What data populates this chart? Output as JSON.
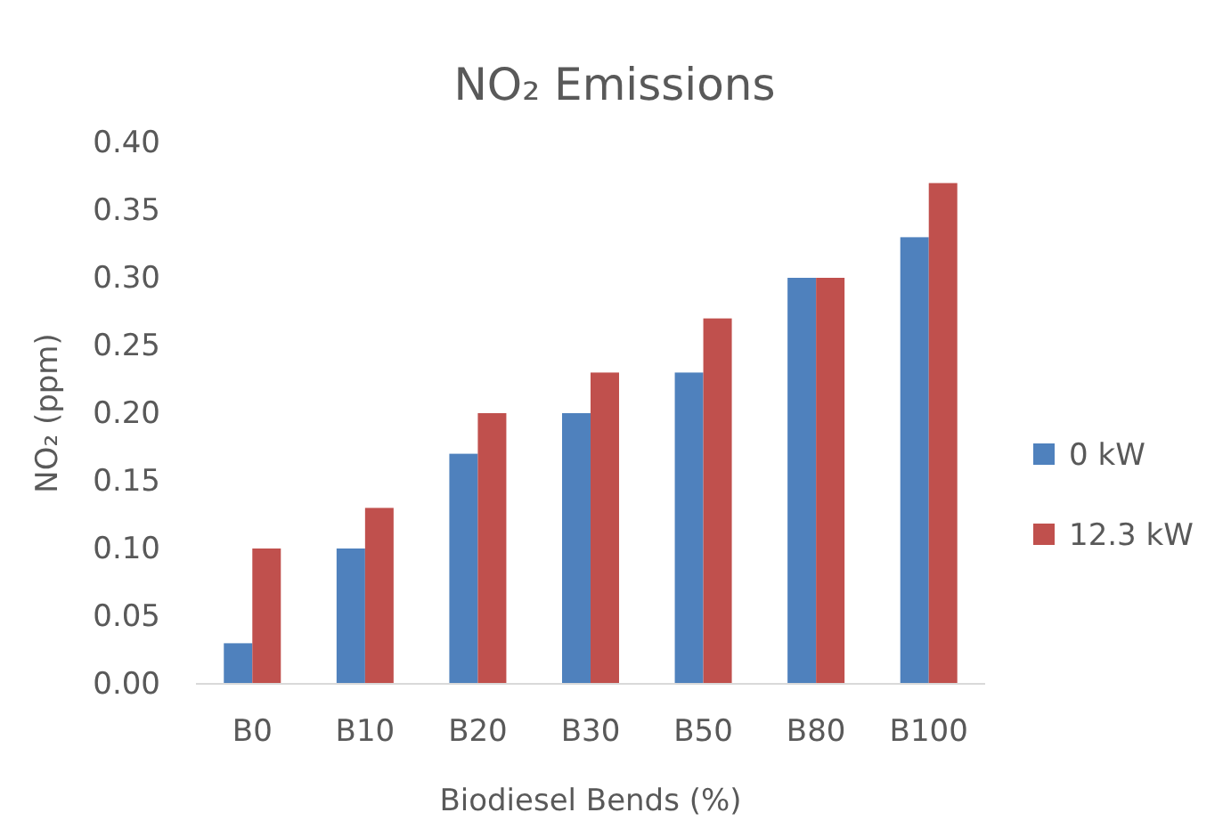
{
  "chart_data": {
    "type": "bar",
    "title": "NO₂ Emissions",
    "xlabel": "Biodiesel Bends (%)",
    "ylabel": "NO₂ (ppm)",
    "categories": [
      "B0",
      "B10",
      "B20",
      "B30",
      "B50",
      "B80",
      "B100"
    ],
    "series": [
      {
        "name": "0 kW",
        "color": "#4f81bd",
        "values": [
          0.03,
          0.1,
          0.17,
          0.2,
          0.23,
          0.3,
          0.33
        ]
      },
      {
        "name": "12.3 kW",
        "color": "#c0504d",
        "values": [
          0.1,
          0.13,
          0.2,
          0.23,
          0.27,
          0.3,
          0.37
        ]
      }
    ],
    "ylim": [
      0,
      0.4
    ],
    "yticks": [
      {
        "value": 0,
        "label": "0.00"
      },
      {
        "value": 0.05,
        "label": "0.05"
      },
      {
        "value": 0.1,
        "label": "0.10"
      },
      {
        "value": 0.15,
        "label": "0.15"
      },
      {
        "value": 0.2,
        "label": "0.20"
      },
      {
        "value": 0.25,
        "label": "0.25"
      },
      {
        "value": 0.3,
        "label": "0.30"
      },
      {
        "value": 0.35,
        "label": "0.35"
      },
      {
        "value": 0.4,
        "label": "0.40"
      }
    ],
    "grid": false,
    "legend": "right"
  }
}
